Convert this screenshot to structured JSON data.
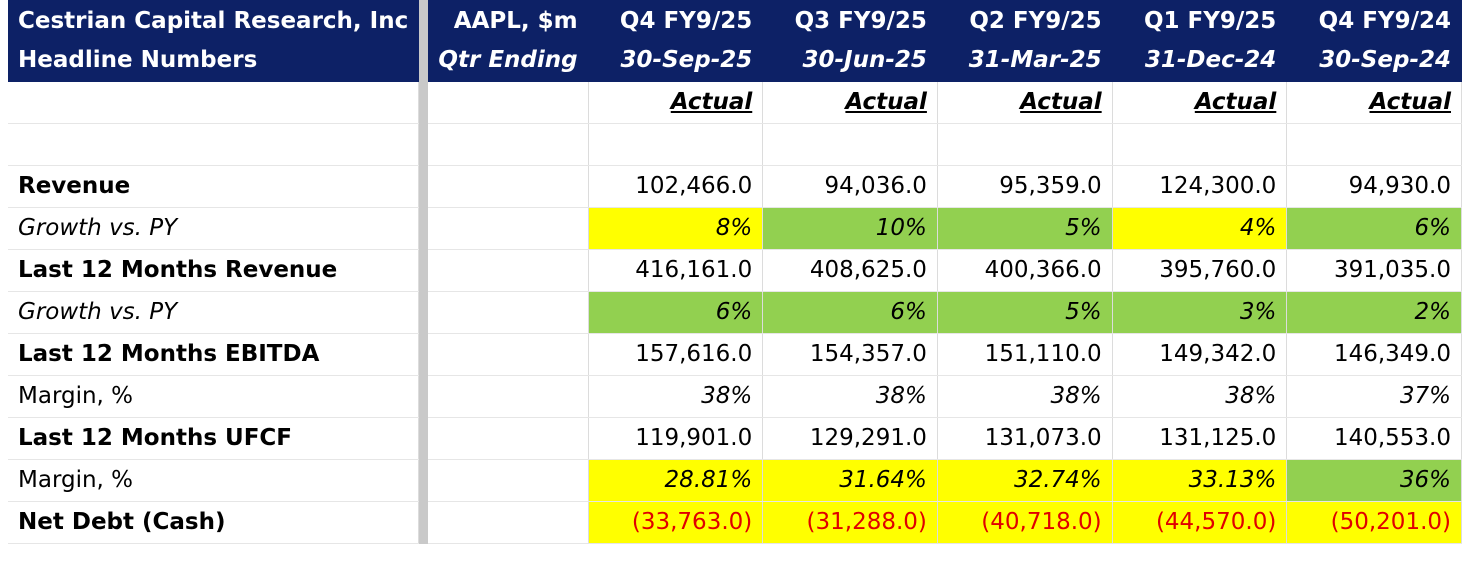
{
  "sheet": {
    "header": {
      "company": "Cestrian Capital Research, Inc",
      "subtitle": "Headline Numbers",
      "ticker": "AAPL, $m",
      "qtr_label": "Qtr Ending",
      "periods": [
        {
          "label": "Q4 FY9/25",
          "date": "30-Sep-25",
          "status": "Actual"
        },
        {
          "label": "Q3 FY9/25",
          "date": "30-Jun-25",
          "status": "Actual"
        },
        {
          "label": "Q2 FY9/25",
          "date": "31-Mar-25",
          "status": "Actual"
        },
        {
          "label": "Q1 FY9/25",
          "date": "31-Dec-24",
          "status": "Actual"
        },
        {
          "label": "Q4 FY9/24",
          "date": "30-Sep-24",
          "status": "Actual"
        }
      ]
    },
    "rows": [
      {
        "label": "Revenue",
        "values": [
          "102,466.0",
          "94,036.0",
          "95,359.0",
          "124,300.0",
          "94,930.0"
        ]
      },
      {
        "label": "Growth vs. PY",
        "values": [
          "8%",
          "10%",
          "5%",
          "4%",
          "6%"
        ]
      },
      {
        "label": "Last 12 Months Revenue",
        "values": [
          "416,161.0",
          "408,625.0",
          "400,366.0",
          "395,760.0",
          "391,035.0"
        ]
      },
      {
        "label": "Growth vs. PY",
        "values": [
          "6%",
          "6%",
          "5%",
          "3%",
          "2%"
        ]
      },
      {
        "label": "Last 12 Months EBITDA",
        "values": [
          "157,616.0",
          "154,357.0",
          "151,110.0",
          "149,342.0",
          "146,349.0"
        ]
      },
      {
        "label": "Margin, %",
        "values": [
          "38%",
          "38%",
          "38%",
          "38%",
          "37%"
        ]
      },
      {
        "label": "Last 12 Months UFCF",
        "values": [
          "119,901.0",
          "129,291.0",
          "131,073.0",
          "131,125.0",
          "140,553.0"
        ]
      },
      {
        "label": "Margin, %",
        "values": [
          "28.81%",
          "31.64%",
          "32.74%",
          "33.13%",
          "36%"
        ]
      },
      {
        "label": "Net Debt (Cash)",
        "values": [
          "(33,763.0)",
          "(31,288.0)",
          "(40,718.0)",
          "(44,570.0)",
          "(50,201.0)"
        ]
      }
    ],
    "colors": {
      "header_bg": "#0d2166",
      "highlight_yellow": "#ffff00",
      "highlight_green": "#92d050",
      "negative_text": "#e00000"
    }
  }
}
